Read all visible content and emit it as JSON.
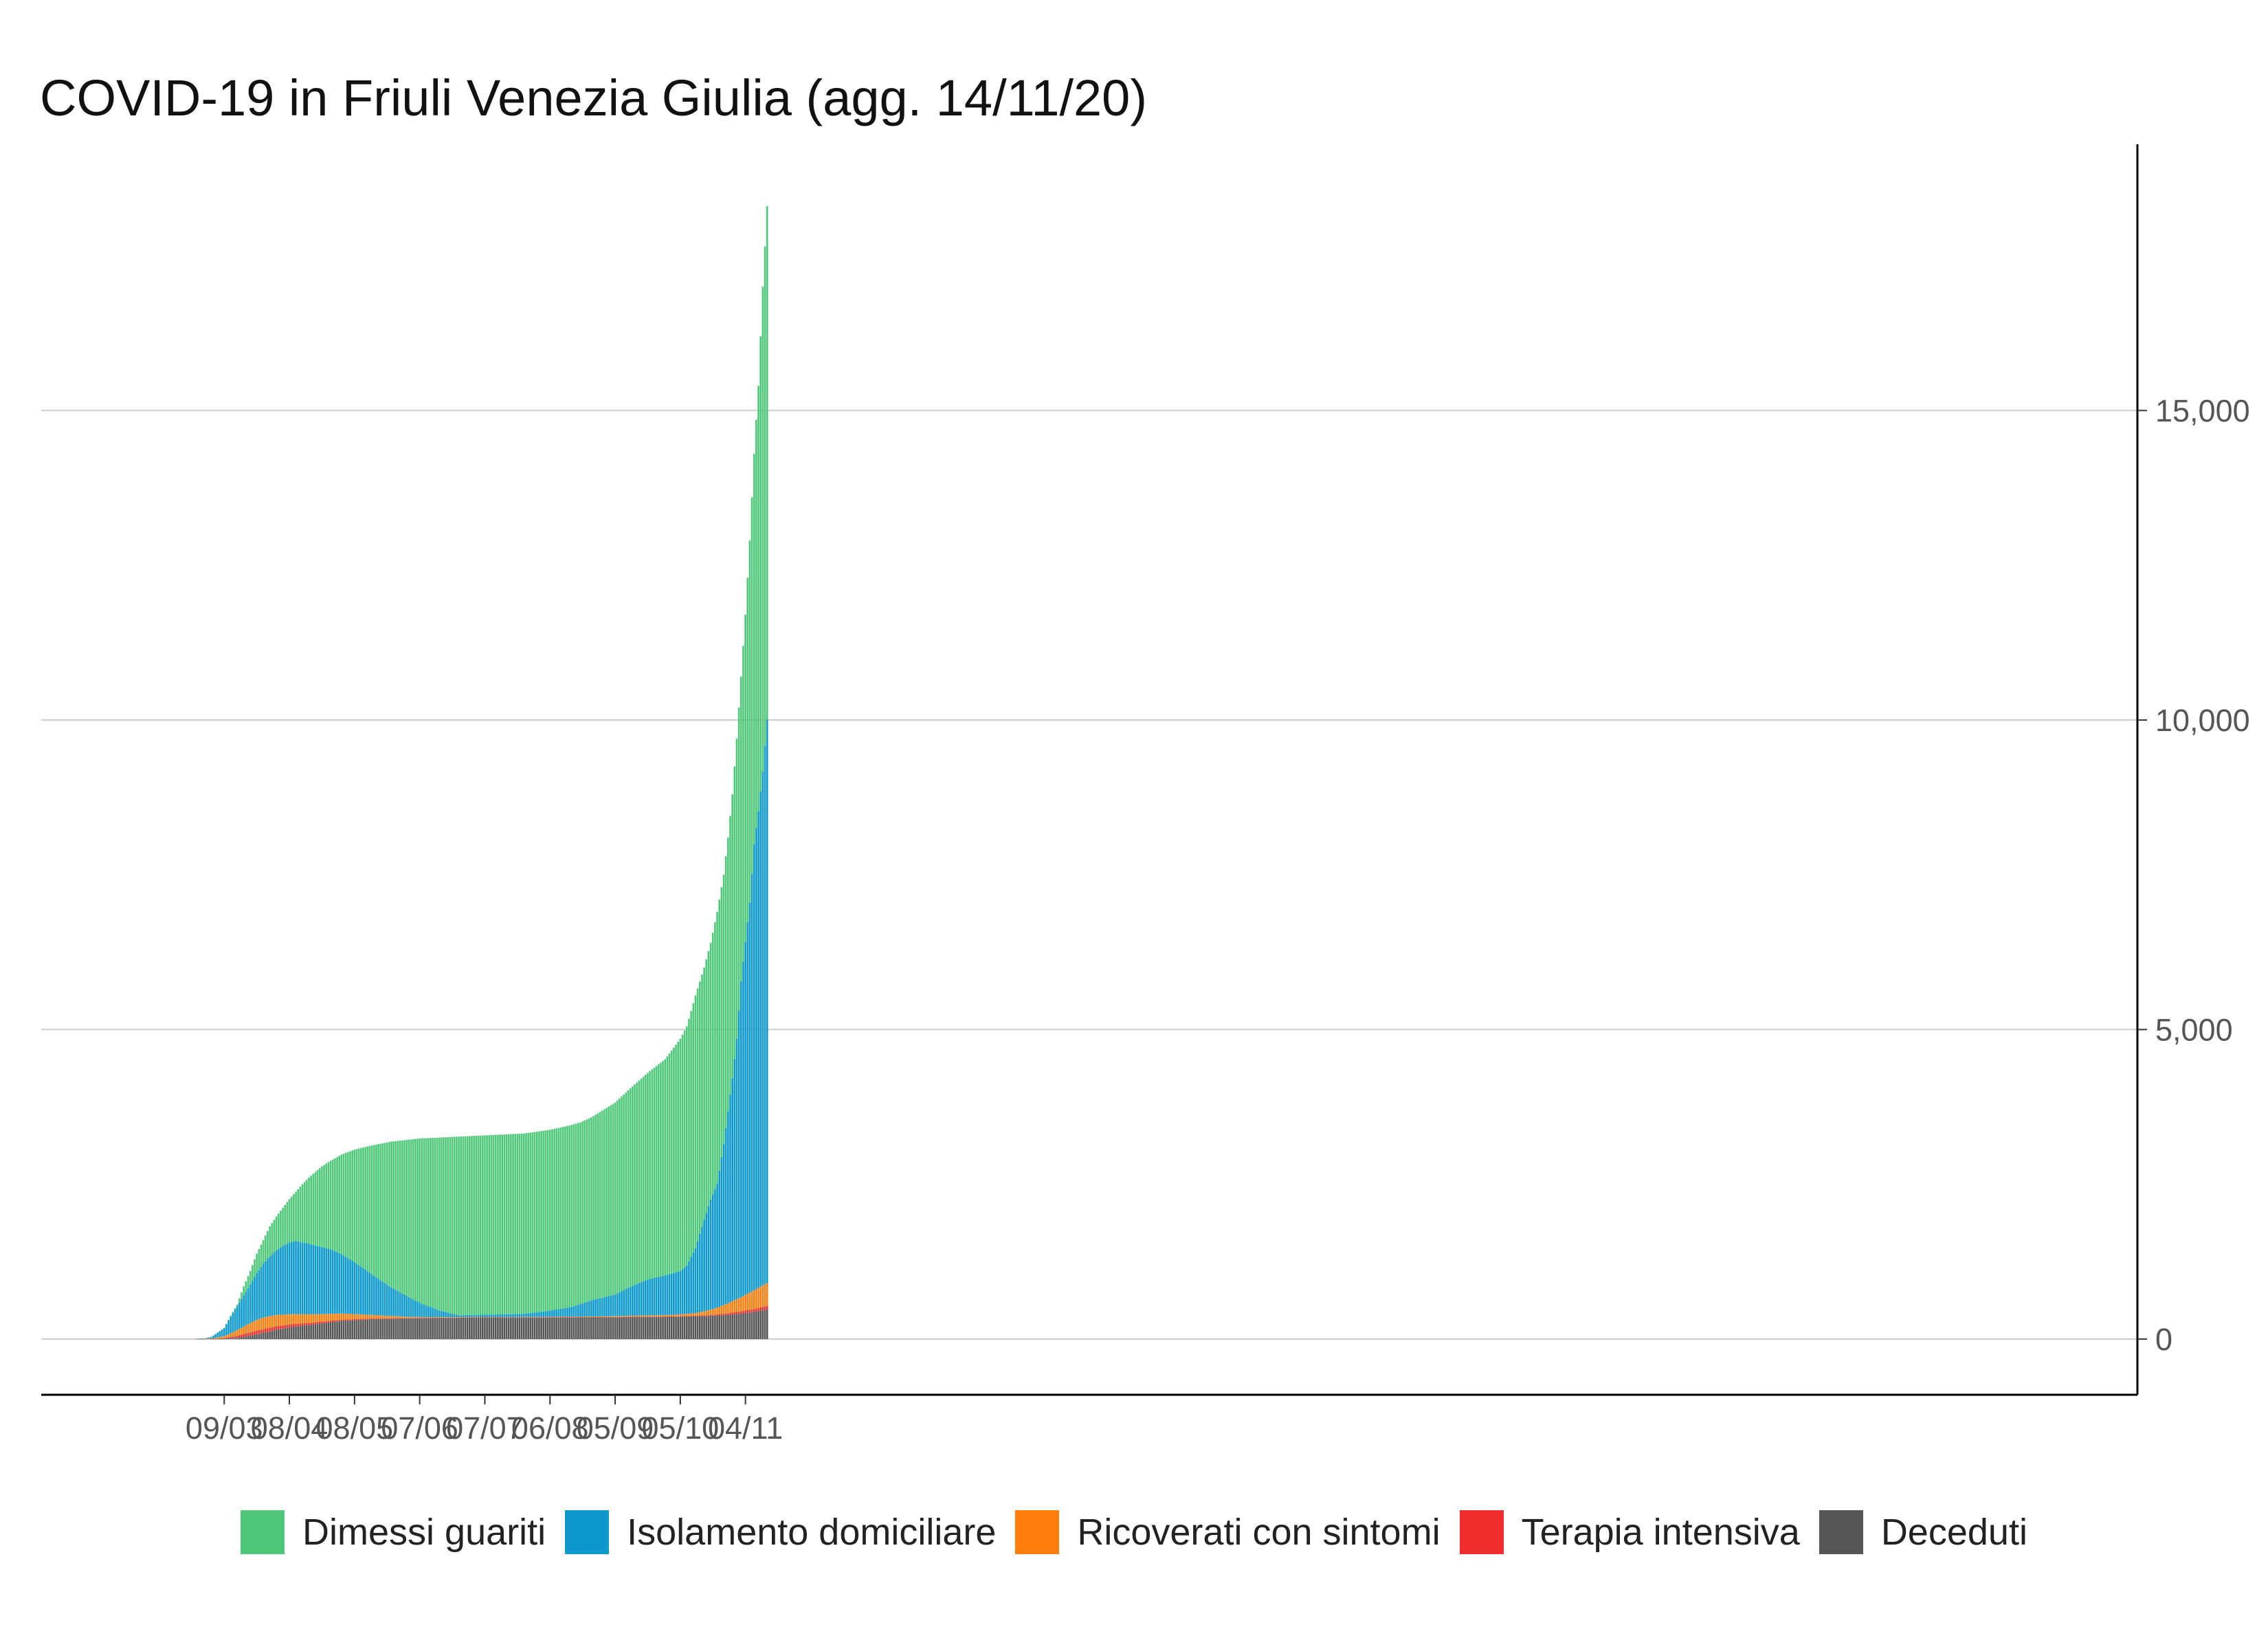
{
  "chart_data": {
    "type": "bar",
    "stacked": true,
    "title": "COVID-19 in Friuli Venezia Giulia (agg. 14/11/20)",
    "xlabel": "",
    "ylabel": "",
    "start_date": "2020-02-24",
    "end_date": "2020-11-14",
    "x_ticks": [
      "09/03",
      "08/04",
      "08/05",
      "07/06",
      "07/07",
      "06/08",
      "05/09",
      "05/10",
      "04/11"
    ],
    "y_ticks": [
      "0",
      "5,000",
      "10,000",
      "15,000"
    ],
    "y_tick_values": [
      0,
      5000,
      10000,
      15000
    ],
    "ylim": [
      -900,
      19300
    ],
    "y_axis_position": "right",
    "grid": "horizontal",
    "legend_position": "bottom",
    "series_keys": [
      "deceduti",
      "terapia",
      "ricoverati",
      "isolamento",
      "guariti"
    ],
    "series": [
      {
        "key": "guariti",
        "name": "Dimessi guariti",
        "color": "#4dc778"
      },
      {
        "key": "isolamento",
        "name": "Isolamento domiciliare",
        "color": "#0a98cd"
      },
      {
        "key": "ricoverati",
        "name": "Ricoverati con sintomi",
        "color": "#ff7f0e"
      },
      {
        "key": "terapia",
        "name": "Terapia intensiva",
        "color": "#ee2c2c"
      },
      {
        "key": "deceduti",
        "name": "Deceduti",
        "color": "#555555"
      }
    ],
    "anchors": {
      "total": [
        [
          "2020-02-24",
          0
        ],
        [
          "2020-02-29",
          5
        ],
        [
          "2020-03-03",
          30
        ],
        [
          "2020-03-06",
          100
        ],
        [
          "2020-03-09",
          180
        ],
        [
          "2020-03-12",
          380
        ],
        [
          "2020-03-15",
          560
        ],
        [
          "2020-03-18",
          850
        ],
        [
          "2020-03-21",
          1100
        ],
        [
          "2020-03-24",
          1380
        ],
        [
          "2020-03-27",
          1600
        ],
        [
          "2020-03-30",
          1820
        ],
        [
          "2020-04-02",
          1980
        ],
        [
          "2020-04-05",
          2120
        ],
        [
          "2020-04-08",
          2260
        ],
        [
          "2020-04-11",
          2380
        ],
        [
          "2020-04-14",
          2500
        ],
        [
          "2020-04-17",
          2610
        ],
        [
          "2020-04-20",
          2700
        ],
        [
          "2020-04-23",
          2790
        ],
        [
          "2020-04-27",
          2880
        ],
        [
          "2020-05-02",
          2980
        ],
        [
          "2020-05-08",
          3060
        ],
        [
          "2020-05-15",
          3120
        ],
        [
          "2020-05-25",
          3190
        ],
        [
          "2020-06-07",
          3240
        ],
        [
          "2020-06-25",
          3270
        ],
        [
          "2020-07-07",
          3290
        ],
        [
          "2020-07-25",
          3320
        ],
        [
          "2020-08-06",
          3380
        ],
        [
          "2020-08-15",
          3450
        ],
        [
          "2020-08-20",
          3500
        ],
        [
          "2020-08-25",
          3580
        ],
        [
          "2020-09-05",
          3820
        ],
        [
          "2020-09-12",
          4050
        ],
        [
          "2020-09-20",
          4300
        ],
        [
          "2020-09-28",
          4520
        ],
        [
          "2020-10-05",
          4850
        ],
        [
          "2020-10-08",
          5050
        ],
        [
          "2020-10-12",
          5550
        ],
        [
          "2020-10-16",
          6000
        ],
        [
          "2020-10-19",
          6400
        ],
        [
          "2020-10-22",
          6900
        ],
        [
          "2020-10-25",
          7500
        ],
        [
          "2020-10-27",
          8100
        ],
        [
          "2020-10-29",
          8800
        ],
        [
          "2020-10-31",
          9700
        ],
        [
          "2020-11-02",
          10700
        ],
        [
          "2020-11-04",
          11700
        ],
        [
          "2020-11-06",
          12900
        ],
        [
          "2020-11-08",
          14300
        ],
        [
          "2020-11-10",
          15400
        ],
        [
          "2020-11-12",
          17000
        ],
        [
          "2020-11-14",
          18300
        ]
      ],
      "isolamento": [
        [
          "2020-02-24",
          0
        ],
        [
          "2020-02-29",
          5
        ],
        [
          "2020-03-03",
          25
        ],
        [
          "2020-03-06",
          80
        ],
        [
          "2020-03-09",
          130
        ],
        [
          "2020-03-12",
          270
        ],
        [
          "2020-03-15",
          390
        ],
        [
          "2020-03-18",
          500
        ],
        [
          "2020-03-21",
          620
        ],
        [
          "2020-03-24",
          760
        ],
        [
          "2020-03-27",
          870
        ],
        [
          "2020-03-30",
          960
        ],
        [
          "2020-04-02",
          1040
        ],
        [
          "2020-04-05",
          1110
        ],
        [
          "2020-04-08",
          1160
        ],
        [
          "2020-04-11",
          1180
        ],
        [
          "2020-04-14",
          1160
        ],
        [
          "2020-04-17",
          1140
        ],
        [
          "2020-04-20",
          1110
        ],
        [
          "2020-04-23",
          1080
        ],
        [
          "2020-04-27",
          1040
        ],
        [
          "2020-05-02",
          960
        ],
        [
          "2020-05-08",
          840
        ],
        [
          "2020-05-15",
          680
        ],
        [
          "2020-05-25",
          460
        ],
        [
          "2020-06-07",
          230
        ],
        [
          "2020-06-16",
          110
        ],
        [
          "2020-06-25",
          30
        ],
        [
          "2020-07-07",
          40
        ],
        [
          "2020-07-25",
          50
        ],
        [
          "2020-08-06",
          100
        ],
        [
          "2020-08-15",
          150
        ],
        [
          "2020-08-25",
          260
        ],
        [
          "2020-09-05",
          350
        ],
        [
          "2020-09-12",
          470
        ],
        [
          "2020-09-20",
          580
        ],
        [
          "2020-09-28",
          640
        ],
        [
          "2020-10-05",
          700
        ],
        [
          "2020-10-08",
          780
        ],
        [
          "2020-10-12",
          1050
        ],
        [
          "2020-10-16",
          1480
        ],
        [
          "2020-10-19",
          1780
        ],
        [
          "2020-10-22",
          2000
        ],
        [
          "2020-10-25",
          2600
        ],
        [
          "2020-10-27",
          3100
        ],
        [
          "2020-10-29",
          3600
        ],
        [
          "2020-10-31",
          4200
        ],
        [
          "2020-11-02",
          5100
        ],
        [
          "2020-11-04",
          5700
        ],
        [
          "2020-11-06",
          6300
        ],
        [
          "2020-11-08",
          7200
        ],
        [
          "2020-11-10",
          7700
        ],
        [
          "2020-11-12",
          8300
        ],
        [
          "2020-11-14",
          9100
        ]
      ],
      "ricoverati": [
        [
          "2020-02-24",
          0
        ],
        [
          "2020-03-03",
          5
        ],
        [
          "2020-03-09",
          30
        ],
        [
          "2020-03-15",
          90
        ],
        [
          "2020-03-21",
          150
        ],
        [
          "2020-03-27",
          190
        ],
        [
          "2020-04-02",
          185
        ],
        [
          "2020-04-10",
          160
        ],
        [
          "2020-04-20",
          130
        ],
        [
          "2020-05-02",
          100
        ],
        [
          "2020-05-15",
          60
        ],
        [
          "2020-06-01",
          20
        ],
        [
          "2020-06-15",
          10
        ],
        [
          "2020-07-10",
          5
        ],
        [
          "2020-08-20",
          8
        ],
        [
          "2020-09-10",
          15
        ],
        [
          "2020-10-01",
          25
        ],
        [
          "2020-10-12",
          40
        ],
        [
          "2020-10-20",
          90
        ],
        [
          "2020-10-27",
          160
        ],
        [
          "2020-11-02",
          230
        ],
        [
          "2020-11-08",
          300
        ],
        [
          "2020-11-14",
          370
        ]
      ],
      "terapia": [
        [
          "2020-02-24",
          0
        ],
        [
          "2020-03-06",
          5
        ],
        [
          "2020-03-12",
          20
        ],
        [
          "2020-03-18",
          45
        ],
        [
          "2020-03-24",
          60
        ],
        [
          "2020-04-02",
          55
        ],
        [
          "2020-04-15",
          35
        ],
        [
          "2020-05-01",
          20
        ],
        [
          "2020-05-20",
          8
        ],
        [
          "2020-06-10",
          3
        ],
        [
          "2020-09-01",
          3
        ],
        [
          "2020-10-05",
          6
        ],
        [
          "2020-10-20",
          14
        ],
        [
          "2020-11-01",
          35
        ],
        [
          "2020-11-14",
          55
        ]
      ],
      "deceduti": [
        [
          "2020-02-24",
          0
        ],
        [
          "2020-03-03",
          0
        ],
        [
          "2020-03-09",
          5
        ],
        [
          "2020-03-15",
          20
        ],
        [
          "2020-03-21",
          55
        ],
        [
          "2020-03-27",
          100
        ],
        [
          "2020-04-02",
          150
        ],
        [
          "2020-04-10",
          200
        ],
        [
          "2020-04-20",
          240
        ],
        [
          "2020-05-01",
          290
        ],
        [
          "2020-05-15",
          320
        ],
        [
          "2020-06-01",
          335
        ],
        [
          "2020-07-01",
          345
        ],
        [
          "2020-08-01",
          348
        ],
        [
          "2020-09-01",
          352
        ],
        [
          "2020-10-01",
          360
        ],
        [
          "2020-10-15",
          370
        ],
        [
          "2020-10-25",
          385
        ],
        [
          "2020-11-02",
          410
        ],
        [
          "2020-11-08",
          440
        ],
        [
          "2020-11-14",
          480
        ]
      ]
    }
  }
}
